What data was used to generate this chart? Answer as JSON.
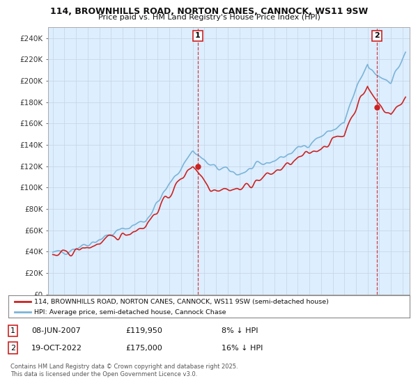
{
  "title": "114, BROWNHILLS ROAD, NORTON CANES, CANNOCK, WS11 9SW",
  "subtitle": "Price paid vs. HM Land Registry's House Price Index (HPI)",
  "ylim": [
    0,
    250000
  ],
  "yticks": [
    0,
    20000,
    40000,
    60000,
    80000,
    100000,
    120000,
    140000,
    160000,
    180000,
    200000,
    220000,
    240000
  ],
  "ytick_labels": [
    "£0",
    "£20K",
    "£40K",
    "£60K",
    "£80K",
    "£100K",
    "£120K",
    "£140K",
    "£160K",
    "£180K",
    "£200K",
    "£220K",
    "£240K"
  ],
  "hpi_color": "#7ab4d8",
  "sold_color": "#cc2222",
  "chart_bg": "#ddeeff",
  "annotation1": {
    "label": "1",
    "date": "08-JUN-2007",
    "price": "£119,950",
    "note": "8% ↓ HPI"
  },
  "annotation2": {
    "label": "2",
    "date": "19-OCT-2022",
    "price": "£175,000",
    "note": "16% ↓ HPI"
  },
  "legend_line1": "114, BROWNHILLS ROAD, NORTON CANES, CANNOCK, WS11 9SW (semi-detached house)",
  "legend_line2": "HPI: Average price, semi-detached house, Cannock Chase",
  "footnote": "Contains HM Land Registry data © Crown copyright and database right 2025.\nThis data is licensed under the Open Government Licence v3.0.",
  "background_color": "#ffffff",
  "grid_color": "#c8d8e8"
}
